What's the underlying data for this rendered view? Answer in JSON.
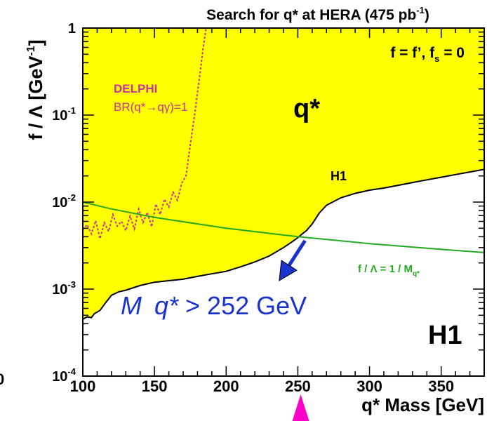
{
  "chart_data": {
    "type": "area",
    "title": "Search for q* at HERA (475 pb",
    "title_sup": "-1",
    "title_end": ")",
    "xlabel": "q* Mass [GeV]",
    "ylabel": "f / Λ [GeV",
    "ylabel_sup": "-1",
    "ylabel_end": "]",
    "x_range": [
      100,
      380
    ],
    "y_range": [
      0.0001,
      1
    ],
    "y_scale": "log",
    "x_ticks": [
      100,
      150,
      200,
      250,
      300,
      350
    ],
    "x_tick_labels": [
      "100",
      "150",
      "200",
      "250",
      "300",
      "350"
    ],
    "y_ticks": [
      0.0001,
      0.001,
      0.01,
      0.1,
      1
    ],
    "y_tick_labels": [
      {
        "base": "10",
        "exp": "-4"
      },
      {
        "base": "10",
        "exp": "-3"
      },
      {
        "base": "10",
        "exp": "-2"
      },
      {
        "base": "10",
        "exp": "-1"
      },
      {
        "base": "1",
        "exp": ""
      }
    ],
    "colors": {
      "excluded_fill": "#ffff00",
      "limit_line": "#000000",
      "delphi": "#cc3399",
      "theory": "#22aa22",
      "arrow": "#1a33cc",
      "marker": "#ff00cc",
      "frame": "#000000"
    },
    "series": [
      {
        "name": "H1",
        "style": "filled-limit",
        "x": [
          100,
          103,
          106,
          108,
          112,
          116,
          120,
          125,
          130,
          140,
          150,
          160,
          170,
          180,
          190,
          200,
          210,
          220,
          230,
          240,
          245,
          250,
          253,
          256,
          260,
          265,
          270,
          280,
          290,
          300,
          310,
          320,
          330,
          340,
          350,
          360,
          370,
          380
        ],
        "y": [
          0.00045,
          0.00048,
          0.00047,
          0.00052,
          0.00057,
          0.0007,
          0.00085,
          0.00093,
          0.00097,
          0.0011,
          0.0012,
          0.00125,
          0.0013,
          0.0014,
          0.0015,
          0.0016,
          0.0018,
          0.00205,
          0.0024,
          0.003,
          0.0034,
          0.0039,
          0.0043,
          0.0047,
          0.0056,
          0.0075,
          0.0092,
          0.0112,
          0.0126,
          0.0137,
          0.0145,
          0.0156,
          0.0168,
          0.018,
          0.0193,
          0.0207,
          0.0222,
          0.0238
        ]
      },
      {
        "name": "DELPHI",
        "style": "dotted",
        "x": [
          100,
          103,
          106,
          109,
          112,
          115,
          118,
          121,
          124,
          127,
          130,
          133,
          136,
          139,
          142,
          145,
          148,
          151,
          154,
          157,
          160,
          163,
          166,
          169,
          172,
          174,
          176,
          178,
          180,
          182,
          184,
          186
        ],
        "y": [
          0.0048,
          0.0055,
          0.0043,
          0.0061,
          0.0038,
          0.0058,
          0.0046,
          0.0072,
          0.0053,
          0.006,
          0.0047,
          0.0069,
          0.0049,
          0.0083,
          0.0058,
          0.0076,
          0.0052,
          0.0095,
          0.0072,
          0.0108,
          0.0088,
          0.013,
          0.0105,
          0.0165,
          0.02,
          0.035,
          0.06,
          0.1,
          0.18,
          0.32,
          0.6,
          1.0
        ]
      },
      {
        "name": "f / Λ = 1 / M_q*",
        "style": "solid",
        "x": [
          100,
          120,
          150,
          200,
          250,
          300,
          350,
          380
        ],
        "y": [
          0.01,
          0.00833,
          0.00667,
          0.005,
          0.004,
          0.00333,
          0.00286,
          0.00263
        ]
      }
    ],
    "annotations": {
      "params": "f = f’, f",
      "params_sub": "s",
      "params_end": " = 0",
      "qstar": "q*",
      "h1_curve": "H1",
      "h1_big": "H1",
      "delphi": "DELPHI",
      "delphi_br": "BR(q*→qγ)=1",
      "theory": "f / Λ  = 1 / M",
      "theory_sub": "q*",
      "mass_limit_prefix": "M",
      "mass_limit_q": "q*",
      "mass_limit_value": " > 252 GeV",
      "mass_limit_x": 252,
      "arrow_from_x": 255,
      "arrow_to_x": 237,
      "arrow_to_y": 0.00125,
      "left_edge_fragment": "0"
    }
  }
}
